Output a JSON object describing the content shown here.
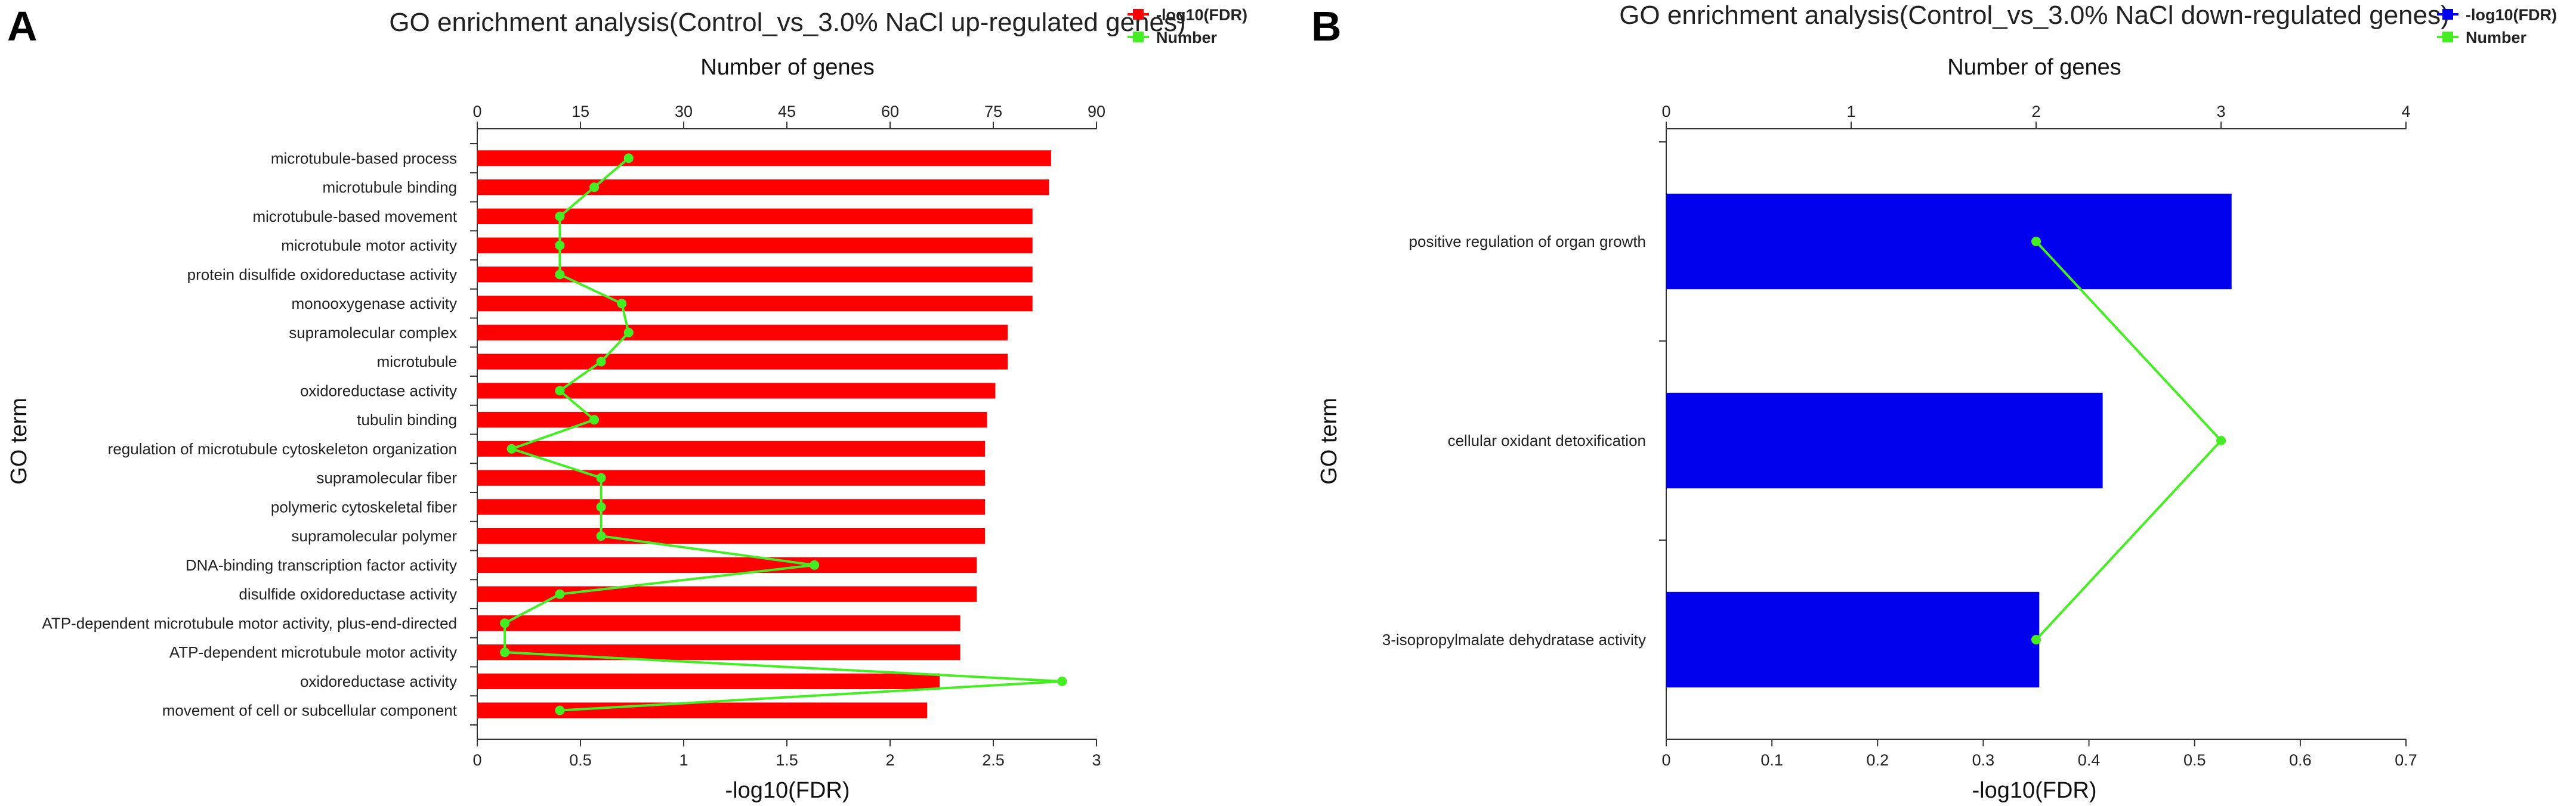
{
  "chart_data": [
    {
      "panel": "A",
      "type": "bar",
      "orientation": "horizontal",
      "title": "GO enrichment analysis(Control_vs_3.0% NaCl  up-regulated genes)",
      "xlabel": "-log10(FDR)",
      "xlabel_top": "Number of genes",
      "ylabel": "GO term",
      "xlim": [
        0,
        3
      ],
      "xticks": [
        "0",
        "0.5",
        "1",
        "1.5",
        "2",
        "2.5",
        "3"
      ],
      "x2lim": [
        0,
        90
      ],
      "x2ticks": [
        "0",
        "15",
        "30",
        "45",
        "60",
        "75",
        "90"
      ],
      "colors": {
        "bar": "#ff0000",
        "line": "#44ee22"
      },
      "legend": [
        "-log10(FDR)",
        "Number"
      ],
      "categories": [
        "microtubule-based process",
        "microtubule binding",
        "microtubule-based movement",
        "microtubule motor activity",
        "protein disulfide oxidoreductase activity",
        "monooxygenase activity",
        "supramolecular complex",
        "microtubule",
        "oxidoreductase activity",
        "tubulin binding",
        "regulation of microtubule cytoskeleton organization",
        "supramolecular fiber",
        "polymeric cytoskeletal fiber",
        "supramolecular polymer",
        "DNA-binding transcription factor activity",
        "disulfide oxidoreductase activity",
        "ATP-dependent microtubule motor activity, plus-end-directed",
        "ATP-dependent microtubule motor activity",
        "oxidoreductase activity",
        "movement of cell or subcellular component"
      ],
      "series": [
        {
          "name": "-log10(FDR)",
          "type": "bar",
          "values": [
            2.78,
            2.77,
            2.69,
            2.69,
            2.69,
            2.69,
            2.57,
            2.57,
            2.51,
            2.47,
            2.46,
            2.46,
            2.46,
            2.46,
            2.42,
            2.42,
            2.34,
            2.34,
            2.24,
            2.18
          ]
        },
        {
          "name": "Number",
          "type": "line",
          "values": [
            22,
            17,
            12,
            12,
            12,
            21,
            22,
            18,
            12,
            17,
            5,
            18,
            18,
            18,
            49,
            12,
            4,
            4,
            85,
            12
          ]
        }
      ]
    },
    {
      "panel": "B",
      "type": "bar",
      "orientation": "horizontal",
      "title": "GO enrichment analysis(Control_vs_3.0% NaCl  down-regulated genes)",
      "xlabel": "-log10(FDR)",
      "xlabel_top": "Number of genes",
      "ylabel": "GO term",
      "xlim": [
        0,
        0.7
      ],
      "xticks": [
        "0",
        "0.1",
        "0.2",
        "0.3",
        "0.4",
        "0.5",
        "0.6",
        "0.7"
      ],
      "x2lim": [
        0,
        4
      ],
      "x2ticks": [
        "0",
        "1",
        "2",
        "3",
        "4"
      ],
      "colors": {
        "bar": "#0000ee",
        "line": "#44ee22"
      },
      "legend": [
        "-log10(FDR)",
        "Number"
      ],
      "categories": [
        "positive regulation of organ growth",
        "cellular oxidant detoxification",
        "3-isopropylmalate dehydratase activity"
      ],
      "series": [
        {
          "name": "-log10(FDR)",
          "type": "bar",
          "values": [
            0.535,
            0.413,
            0.353
          ]
        },
        {
          "name": "Number",
          "type": "line",
          "values": [
            2,
            3,
            2
          ]
        }
      ]
    }
  ]
}
